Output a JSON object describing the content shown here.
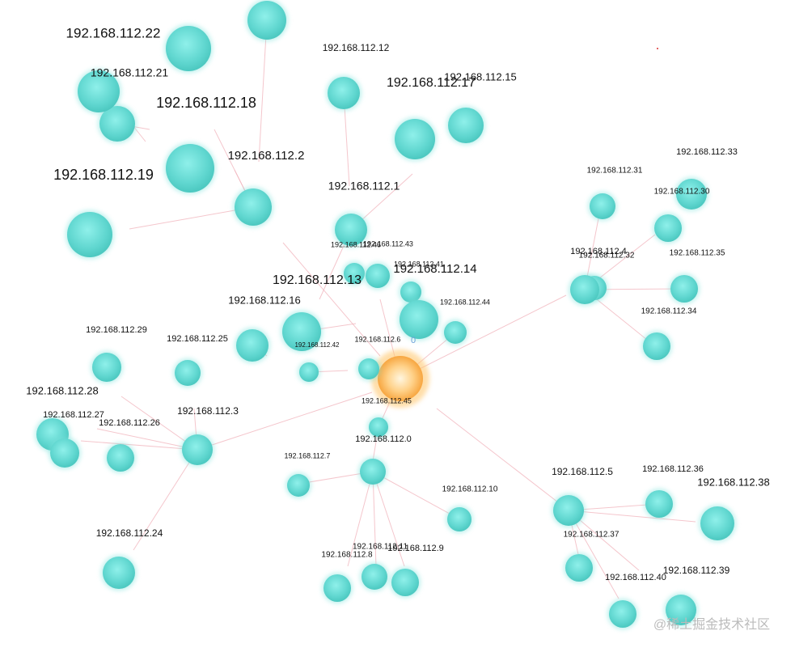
{
  "nodes": [
    {
      "label": "192.168.112.45"
    },
    {
      "label": "192.168.112.22"
    },
    {
      "label": "192.168.112.21"
    },
    {
      "label": "192.168.112.18"
    },
    {
      "label": "192.168.112.19"
    },
    {
      "label": "192.168.112.12"
    },
    {
      "label": "192.168.112.17"
    },
    {
      "label": "192.168.112.15"
    },
    {
      "label": "192.168.112.2"
    },
    {
      "label": "192.168.112.1"
    },
    {
      "label": "192.168.112.46"
    },
    {
      "label": "192.168.112.43"
    },
    {
      "label": "192.168.112.13"
    },
    {
      "label": "192.168.112.41"
    },
    {
      "label": "192.168.112.14"
    },
    {
      "label": "192.168.112.44"
    },
    {
      "label": "192.168.112.16"
    },
    {
      "label": "192.168.112.6"
    },
    {
      "label": "192.168.112.42"
    },
    {
      "label": "192.168.112.29"
    },
    {
      "label": "192.168.112.25"
    },
    {
      "label": "192.168.112.28"
    },
    {
      "label": "192.168.112.27"
    },
    {
      "label": "192.168.112.26"
    },
    {
      "label": "192.168.112.3"
    },
    {
      "label": "192.168.112.0"
    },
    {
      "label": "192.168.112.7"
    },
    {
      "label": "192.168.112.10"
    },
    {
      "label": "192.168.112.24"
    },
    {
      "label": "192.168.112.8"
    },
    {
      "label": "192.168.112.11"
    },
    {
      "label": "192.168.112.9"
    },
    {
      "label": "192.168.112.5"
    },
    {
      "label": "192.168.112.36"
    },
    {
      "label": "192.168.112.38"
    },
    {
      "label": "192.168.112.37"
    },
    {
      "label": "192.168.112.40"
    },
    {
      "label": "192.168.112.39"
    },
    {
      "label": "192.168.112.33"
    },
    {
      "label": "192.168.112.31"
    },
    {
      "label": "192.168.112.30"
    },
    {
      "label": "192.168.112.4"
    },
    {
      "label": "192.168.112.32"
    },
    {
      "label": "192.168.112.35"
    },
    {
      "label": "192.168.112.34"
    }
  ],
  "stray_text": "0",
  "watermark": "@稀土掘金技术社区"
}
